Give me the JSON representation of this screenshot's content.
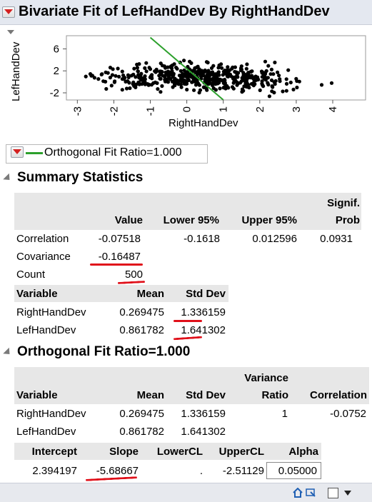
{
  "report_title": "Bivariate Fit of LefHandDev By RightHandDev",
  "plot": {
    "y_axis_label": "LefHandDev",
    "x_axis_label": "RightHandDev",
    "y_ticks": [
      "6",
      "2",
      "-2"
    ],
    "x_ticks": [
      "-3",
      "-2",
      "-1",
      "0",
      "1",
      "2",
      "3",
      "4"
    ],
    "fit_line_color": "#2ca02c"
  },
  "chart_data": {
    "type": "scatter",
    "xlabel": "RightHandDev",
    "ylabel": "LefHandDev",
    "xlim": [
      -3.3,
      4.9
    ],
    "ylim": [
      -3.3,
      8.4
    ],
    "series": [
      {
        "name": "Orthogonal Fit Ratio=1.000",
        "kind": "line",
        "x": [
          -1.0,
          1.0
        ],
        "y": [
          8.08,
          -3.29
        ]
      }
    ]
  },
  "fit_legend": {
    "label": "Orthogonal Fit Ratio=1.000",
    "line_color": "#2ca02c"
  },
  "summary": {
    "title": "Summary Statistics",
    "headers": [
      "",
      "Value",
      "Lower 95%",
      "Upper 95%",
      "Signif.",
      "Prob"
    ],
    "rows": [
      {
        "label": "Correlation",
        "value": "-0.07518",
        "lower": "-0.1618",
        "upper": "0.012596",
        "prob": "0.0931"
      },
      {
        "label": "Covariance",
        "value": "-0.16487"
      },
      {
        "label": "Count",
        "value": "500"
      }
    ],
    "var_headers": [
      "Variable",
      "Mean",
      "Std Dev"
    ],
    "var_rows": [
      {
        "name": "RightHandDev",
        "mean": "0.269475",
        "sd": "1.336159"
      },
      {
        "name": "LefHandDev",
        "mean": "0.861782",
        "sd": "1.641302"
      }
    ]
  },
  "orthogonal": {
    "title": "Orthogonal Fit Ratio=1.000",
    "headers": [
      "Variable",
      "Mean",
      "Std Dev",
      "Variance",
      "Ratio",
      "Correlation"
    ],
    "rows": [
      {
        "name": "RightHandDev",
        "mean": "0.269475",
        "sd": "1.336159",
        "ratio": "1",
        "corr": "-0.0752"
      },
      {
        "name": "LefHandDev",
        "mean": "0.861782",
        "sd": "1.641302",
        "ratio": "",
        "corr": ""
      }
    ],
    "fit_headers": [
      "Intercept",
      "Slope",
      "LowerCL",
      "UpperCL",
      "Alpha"
    ],
    "fit_row": {
      "intercept": "2.394197",
      "slope": "-5.68667",
      "lowercl": ".",
      "uppercl": "-2.51129",
      "alpha": "0.05000"
    }
  },
  "annotation_color": "#e0101a",
  "icons": [
    "red-triangle-menu-icon",
    "disclosure-triangle-icon",
    "home-icon",
    "select-icon",
    "checkbox-icon",
    "dropdown-arrow-icon"
  ]
}
